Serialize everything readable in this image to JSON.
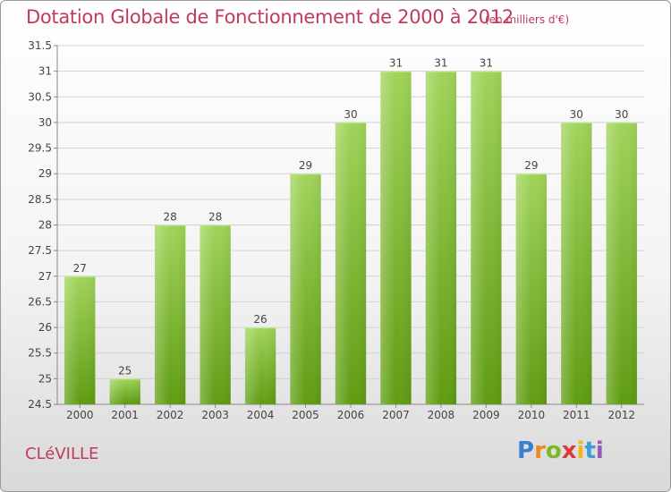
{
  "chart_data": {
    "type": "bar",
    "title": "Dotation Globale de Fonctionnement de 2000 à 2012",
    "unit_note": "(en milliers d'€)",
    "categories": [
      "2000",
      "2001",
      "2002",
      "2003",
      "2004",
      "2005",
      "2006",
      "2007",
      "2008",
      "2009",
      "2010",
      "2011",
      "2012"
    ],
    "values": [
      27,
      25,
      28,
      28,
      26,
      29,
      30,
      31,
      31,
      31,
      29,
      30,
      30
    ],
    "yticks": [
      "24.5",
      "25",
      "25.5",
      "26",
      "26.5",
      "27",
      "27.5",
      "28",
      "28.5",
      "29",
      "29.5",
      "30",
      "30.5",
      "31",
      "31.5"
    ],
    "ylim": [
      24.5,
      31.5
    ],
    "grid": true,
    "bar_color": "#7ab82a"
  },
  "footer": {
    "town": "CLéVILLE",
    "logo_letters": [
      "P",
      "r",
      "o",
      "x",
      "i",
      "t",
      "i"
    ]
  }
}
